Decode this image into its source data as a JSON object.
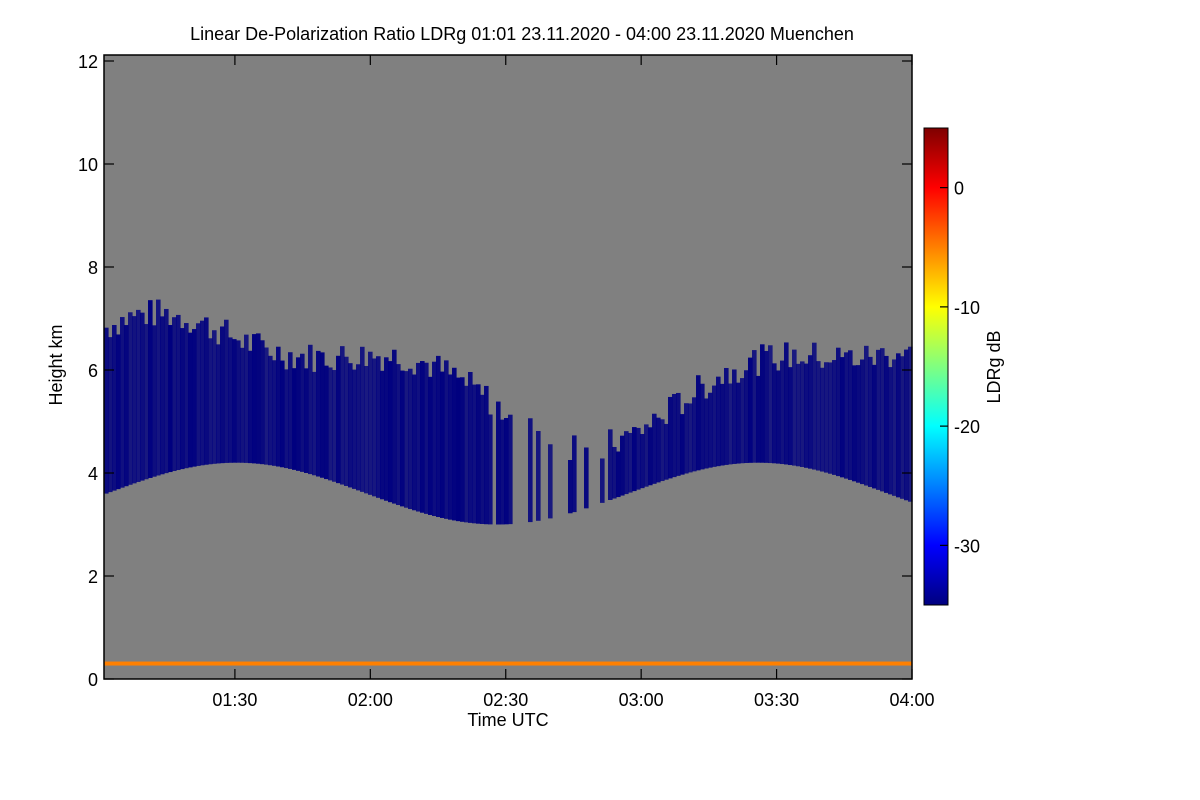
{
  "chart_data": {
    "type": "heatmap",
    "title": "Linear De-Polarization Ratio LDRg   01:01 23.11.2020 - 04:00 23.11.2020 Muenchen",
    "xlabel": "Time UTC",
    "ylabel": "Height km",
    "xlim": [
      "01:01",
      "04:00"
    ],
    "ylim": [
      0,
      12
    ],
    "x_ticks": [
      "01:30",
      "02:00",
      "02:30",
      "03:00",
      "03:30",
      "04:00"
    ],
    "y_ticks": [
      "0",
      "2",
      "4",
      "6",
      "8",
      "10",
      "12"
    ],
    "colorbar": {
      "label": "LDRg dB",
      "range": [
        -35,
        5
      ],
      "ticks": [
        "0",
        "-10",
        "-20",
        "-30"
      ],
      "colormap": [
        "#00007f",
        "#0000ff",
        "#0080ff",
        "#00ffff",
        "#80ff80",
        "#ffff00",
        "#ff8000",
        "#ff0000",
        "#7f0000"
      ]
    },
    "background_color": "#808080",
    "features": [
      {
        "name": "cloud layer",
        "time_start": "01:01",
        "time_end": "04:00",
        "height_base_km": [
          3.0,
          4.2
        ],
        "height_top_km": [
          4.5,
          7.3
        ],
        "ldr_db": -32
      },
      {
        "name": "near-ground layer",
        "time_start": "01:01",
        "time_end": "04:00",
        "height_km": 0.3,
        "ldr_db": -5
      }
    ]
  }
}
